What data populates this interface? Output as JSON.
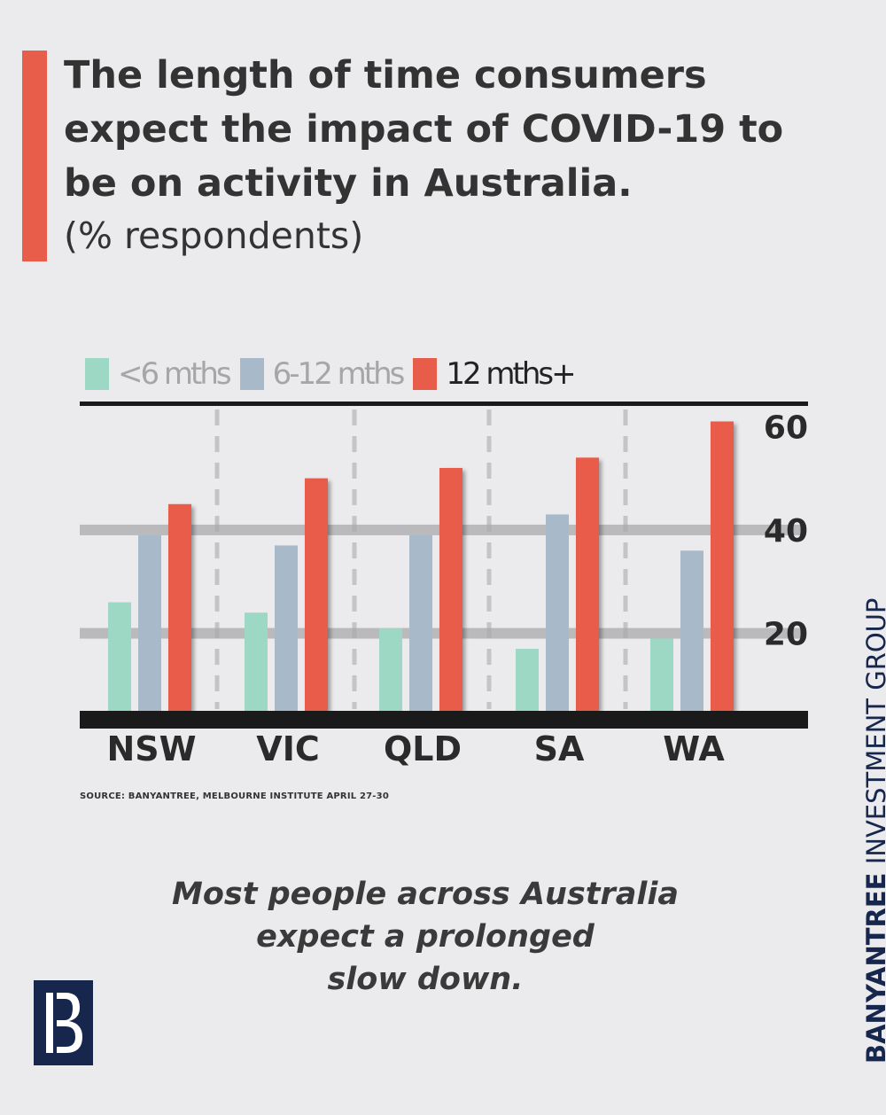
{
  "header": {
    "title": "The length of time consumers expect the impact of COVID-19 to be on activity in Australia.",
    "subtitle": "(% respondents)"
  },
  "chart_data": {
    "type": "bar",
    "categories": [
      "NSW",
      "VIC",
      "QLD",
      "SA",
      "WA"
    ],
    "series": [
      {
        "name": "<6 mths",
        "values": [
          26,
          24,
          21,
          17,
          19
        ],
        "color": "#9dd8c4"
      },
      {
        "name": "6-12 mths",
        "values": [
          39,
          37,
          39,
          43,
          36
        ],
        "color": "#a8b9c9"
      },
      {
        "name": "12 mths+",
        "values": [
          45,
          50,
          52,
          54,
          61
        ],
        "color": "#e85c4a"
      }
    ],
    "yticks": [
      "20",
      "40",
      "60"
    ],
    "ylim": [
      5,
      64
    ],
    "legend_placement": "top-left"
  },
  "source": "SOURCE: BANYANTREE, MELBOURNE INSTITUTE  APRIL 27-30",
  "tagline": [
    "Most people across Australia",
    "expect a prolonged",
    "slow down."
  ],
  "brand": {
    "name_bold": "BANYANTREE",
    "name_light": " INVESTMENT GROUP",
    "logo_icon": "banyantree-b-logo-icon",
    "color": "#16264d"
  }
}
